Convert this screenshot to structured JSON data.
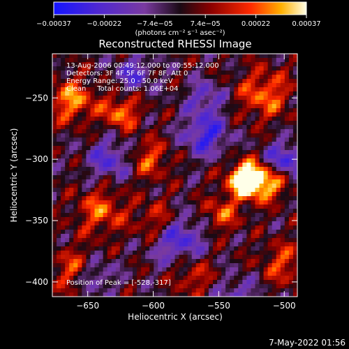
{
  "chart_data": {
    "type": "heatmap",
    "title": "Reconstructed RHESSI Image",
    "xlabel": "Heliocentric X (arcsec)",
    "ylabel": "Heliocentric Y (arcsec)",
    "xlim": [
      -677,
      -490
    ],
    "ylim": [
      -412,
      -214
    ],
    "xticks": [
      -650,
      -600,
      -550,
      -500
    ],
    "yticks": [
      -250,
      -300,
      -350,
      -400
    ],
    "xtick_labels": [
      "−650",
      "−600",
      "−550",
      "−500"
    ],
    "ytick_labels": [
      "−250",
      "−300",
      "−350",
      "−400"
    ],
    "colorbar": {
      "min": -0.00037,
      "max": 0.00037,
      "tick_labels": [
        "−0.00037",
        "−0.00022",
        "−7.4e−05",
        "7.4e−05",
        "0.00022",
        "0.00037"
      ],
      "units": "(photons cm⁻² s⁻¹ asec⁻²)"
    },
    "peak": {
      "x": -528,
      "y": -317
    },
    "annotations": [
      "13-Aug-2006 00:49:12.000 to 00:55:12.000",
      "Detectors: 3F 4F 5F 6F 7F 8F, Att 0",
      "Energy Range: 25.0 - 50.0 keV",
      "Clean     Total counts: 1.06E+04"
    ],
    "peak_label": "Position of Peak = [-528,-317]"
  },
  "footer": {
    "timestamp": "7-May-2022 01:56"
  }
}
